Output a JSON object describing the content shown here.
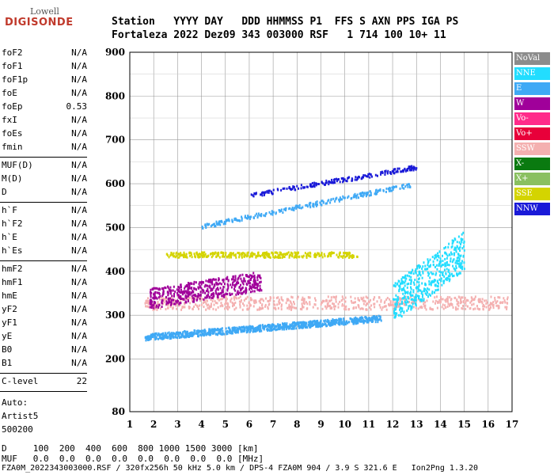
{
  "logo": {
    "brand_top": "Lowell",
    "brand_bottom": "DIGISONDE"
  },
  "header": {
    "line1": "Station   YYYY DAY   DDD HHMMSS P1  FFS S AXN PPS IGA PS",
    "line2": "Fortaleza 2022 Dez09 343 003000 RSF   1 714 100 10+ 11"
  },
  "params": {
    "group1": [
      {
        "name": "foF2",
        "value": "N/A"
      },
      {
        "name": "foF1",
        "value": "N/A"
      },
      {
        "name": "foF1p",
        "value": "N/A"
      },
      {
        "name": "foE",
        "value": "N/A"
      },
      {
        "name": "foEp",
        "value": "0.53"
      },
      {
        "name": "fxI",
        "value": "N/A"
      },
      {
        "name": "foEs",
        "value": "N/A"
      },
      {
        "name": "fmin",
        "value": "N/A"
      }
    ],
    "group2": [
      {
        "name": "MUF(D)",
        "value": "N/A"
      },
      {
        "name": "M(D)",
        "value": "N/A"
      },
      {
        "name": "D",
        "value": "N/A"
      }
    ],
    "group3": [
      {
        "name": "h`F",
        "value": "N/A"
      },
      {
        "name": "h`F2",
        "value": "N/A"
      },
      {
        "name": "h`E",
        "value": "N/A"
      },
      {
        "name": "h`Es",
        "value": "N/A"
      }
    ],
    "group4": [
      {
        "name": "hmF2",
        "value": "N/A"
      },
      {
        "name": "hmF1",
        "value": "N/A"
      },
      {
        "name": "hmE",
        "value": "N/A"
      },
      {
        "name": "yF2",
        "value": "N/A"
      },
      {
        "name": "yF1",
        "value": "N/A"
      },
      {
        "name": "yE",
        "value": "N/A"
      },
      {
        "name": "B0",
        "value": "N/A"
      },
      {
        "name": "B1",
        "value": "N/A"
      }
    ],
    "clevel": {
      "name": "C-level",
      "value": "22"
    },
    "auto": [
      "Auto:",
      "Artist5",
      "500200"
    ]
  },
  "legend": [
    {
      "label": "NoVal",
      "color": "#8c8c8c"
    },
    {
      "label": "NNE",
      "color": "#22ddff"
    },
    {
      "label": "E",
      "color": "#3fa9f5"
    },
    {
      "label": "W",
      "color": "#a0009a"
    },
    {
      "label": "Vo-",
      "color": "#ff2a8a"
    },
    {
      "label": "Vo+",
      "color": "#e8003a"
    },
    {
      "label": "SSW",
      "color": "#f4b0b0"
    },
    {
      "label": "X-",
      "color": "#0a7a10"
    },
    {
      "label": "X+",
      "color": "#8ac060"
    },
    {
      "label": "SSE",
      "color": "#d4d400"
    },
    {
      "label": "NNW",
      "color": "#1a1ad8"
    }
  ],
  "footer": {
    "line1": "D     100  200  400  600  800 1000 1500 3000 [km]",
    "line2": "MUF   0.0  0.0  0.0  0.0  0.0  0.0  0.0  0.0 [MHz]",
    "line3": "FZA0M_2022343003000.RSF / 320fx256h 50 kHz 5.0 km / DPS-4 FZA0M 904 / 3.9 S 321.6 E   Ion2Png 1.3.20"
  },
  "chart_data": {
    "type": "scatter",
    "xlim": [
      1,
      17
    ],
    "ylim": [
      80,
      900
    ],
    "x_ticks": [
      1,
      2,
      3,
      4,
      5,
      6,
      7,
      8,
      9,
      10,
      11,
      12,
      13,
      14,
      15,
      16,
      17
    ],
    "y_ticks": [
      80,
      200,
      300,
      400,
      500,
      600,
      700,
      800,
      900
    ],
    "grid": true,
    "traces": [
      {
        "legend": "E",
        "name": "F-layer lower trace",
        "x_start": 1.6,
        "x_end": 11.5,
        "y_start": 252,
        "y_end": 295
      },
      {
        "legend": "E",
        "name": "upper trace 1",
        "x_start": 4.0,
        "x_end": 12.8,
        "y_start": 505,
        "y_end": 600
      },
      {
        "legend": "NNW",
        "name": "upper trace 2",
        "x_start": 6.0,
        "x_end": 13.0,
        "y_start": 575,
        "y_end": 640
      },
      {
        "legend": "SSE",
        "name": "SSE band",
        "x_start": 2.5,
        "x_end": 10.5,
        "y_start": 440,
        "y_end": 440
      },
      {
        "legend": "SSW",
        "name": "SSW band",
        "x_start": 1.6,
        "x_end": 16.8,
        "y_start": 330,
        "y_end": 330
      },
      {
        "legend": "W",
        "name": "W cluster",
        "x_start": 1.8,
        "x_end": 6.5,
        "y_start": 340,
        "y_end": 380
      },
      {
        "legend": "NNE",
        "name": "NNE cluster",
        "x_start": 12.0,
        "x_end": 15.0,
        "y_start": 330,
        "y_end": 450
      }
    ]
  }
}
